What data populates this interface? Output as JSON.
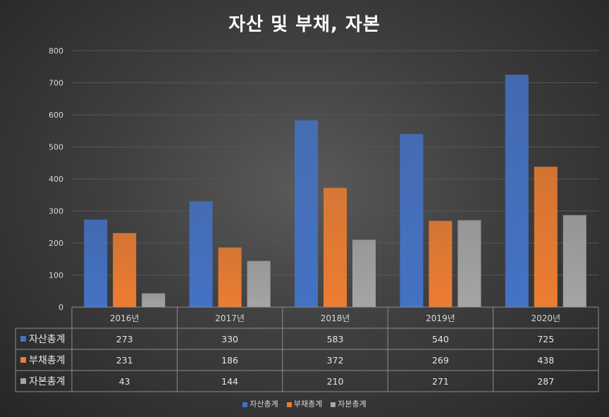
{
  "chart_data": {
    "type": "bar",
    "title": "자산 및 부채, 자본",
    "categories": [
      "2016년",
      "2017년",
      "2018년",
      "2019년",
      "2020년"
    ],
    "series": [
      {
        "name": "자산총계",
        "color": "#4472c4",
        "values": [
          273,
          330,
          583,
          540,
          725
        ]
      },
      {
        "name": "부채총계",
        "color": "#ed7d31",
        "values": [
          231,
          186,
          372,
          269,
          438
        ]
      },
      {
        "name": "자본총계",
        "color": "#a5a5a5",
        "values": [
          43,
          144,
          210,
          271,
          287
        ]
      }
    ],
    "ylim": [
      0,
      800
    ],
    "yticks": [
      0,
      100,
      200,
      300,
      400,
      500,
      600,
      700,
      800
    ],
    "grid": true,
    "data_table": true,
    "legend_position": "bottom"
  }
}
